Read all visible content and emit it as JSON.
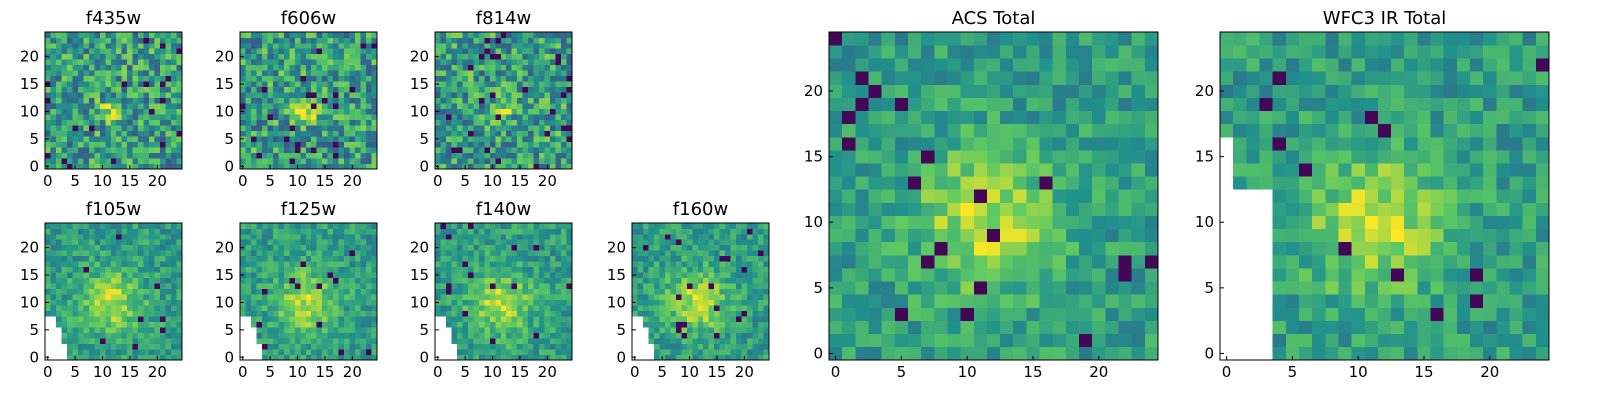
{
  "chart_data": [
    {
      "type": "heatmap",
      "title": "f435w",
      "xticks": [
        0,
        5,
        10,
        15,
        20
      ],
      "yticks": [
        0,
        5,
        10,
        15,
        20
      ],
      "xlim": [
        0,
        24
      ],
      "ylim": [
        0,
        24
      ],
      "grid": false,
      "colormap": "viridis"
    },
    {
      "type": "heatmap",
      "title": "f606w",
      "xticks": [
        0,
        5,
        10,
        15,
        20
      ],
      "yticks": [
        0,
        5,
        10,
        15,
        20
      ],
      "xlim": [
        0,
        24
      ],
      "ylim": [
        0,
        24
      ],
      "grid": false,
      "colormap": "viridis"
    },
    {
      "type": "heatmap",
      "title": "f814w",
      "xticks": [
        0,
        5,
        10,
        15,
        20
      ],
      "yticks": [
        0,
        5,
        10,
        15,
        20
      ],
      "xlim": [
        0,
        24
      ],
      "ylim": [
        0,
        24
      ],
      "grid": false,
      "colormap": "viridis"
    },
    {
      "type": "heatmap",
      "title": "f105w",
      "xticks": [
        0,
        5,
        10,
        15,
        20
      ],
      "yticks": [
        0,
        5,
        10,
        15,
        20
      ],
      "xlim": [
        0,
        24
      ],
      "ylim": [
        0,
        24
      ],
      "grid": false,
      "colormap": "viridis"
    },
    {
      "type": "heatmap",
      "title": "f125w",
      "xticks": [
        0,
        5,
        10,
        15,
        20
      ],
      "yticks": [
        0,
        5,
        10,
        15,
        20
      ],
      "xlim": [
        0,
        24
      ],
      "ylim": [
        0,
        24
      ],
      "grid": false,
      "colormap": "viridis"
    },
    {
      "type": "heatmap",
      "title": "f140w",
      "xticks": [
        0,
        5,
        10,
        15,
        20
      ],
      "yticks": [
        0,
        5,
        10,
        15,
        20
      ],
      "xlim": [
        0,
        24
      ],
      "ylim": [
        0,
        24
      ],
      "grid": false,
      "colormap": "viridis"
    },
    {
      "type": "heatmap",
      "title": "f160w",
      "xticks": [
        0,
        5,
        10,
        15,
        20
      ],
      "yticks": [
        0,
        5,
        10,
        15,
        20
      ],
      "xlim": [
        0,
        24
      ],
      "ylim": [
        0,
        24
      ],
      "grid": false,
      "colormap": "viridis"
    },
    {
      "type": "heatmap",
      "title": "ACS Total",
      "xticks": [
        0,
        5,
        10,
        15,
        20
      ],
      "yticks": [
        0,
        5,
        10,
        15,
        20
      ],
      "xlim": [
        0,
        24
      ],
      "ylim": [
        0,
        24
      ],
      "grid": false,
      "colormap": "viridis"
    },
    {
      "type": "heatmap",
      "title": "WFC3 IR Total",
      "xticks": [
        0,
        5,
        10,
        15,
        20
      ],
      "yticks": [
        0,
        5,
        10,
        15,
        20
      ],
      "xlim": [
        0,
        24
      ],
      "ylim": [
        0,
        24
      ],
      "grid": false,
      "colormap": "viridis"
    }
  ],
  "colors": {
    "viridis": [
      "#440154",
      "#3b528b",
      "#21918c",
      "#5ec962",
      "#fde725"
    ],
    "background": "#ffffff",
    "axes": "#000000"
  }
}
